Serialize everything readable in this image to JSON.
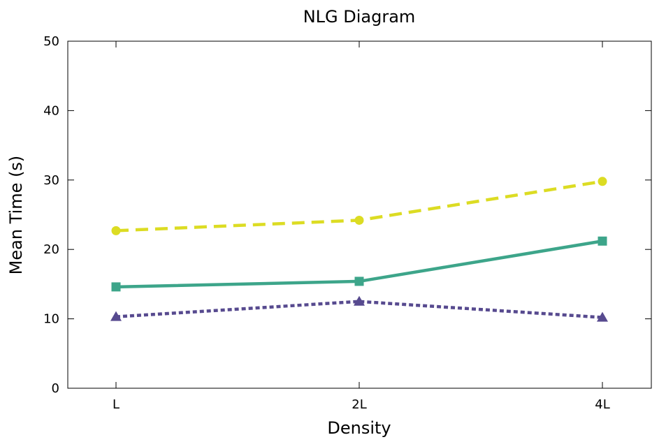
{
  "chart_data": {
    "type": "line",
    "title": "NLG Diagram",
    "xlabel": "Density",
    "ylabel": "Mean Time (s)",
    "categories": [
      "L",
      "2L",
      "4L"
    ],
    "ylim": [
      0,
      50
    ],
    "yticks": [
      "0",
      "10",
      "20",
      "30",
      "40",
      "50"
    ],
    "grid": false,
    "legend": "none",
    "series": [
      {
        "values": [
          22.7,
          24.2,
          29.8
        ],
        "color": "#dcdc23",
        "line_style": "dashed",
        "marker": "circle"
      },
      {
        "values": [
          14.6,
          15.4,
          21.2
        ],
        "color": "#3da58a",
        "line_style": "solid",
        "marker": "square"
      },
      {
        "values": [
          10.3,
          12.5,
          10.2
        ],
        "color": "#574a8f",
        "line_style": "dotted",
        "marker": "triangle"
      }
    ]
  }
}
